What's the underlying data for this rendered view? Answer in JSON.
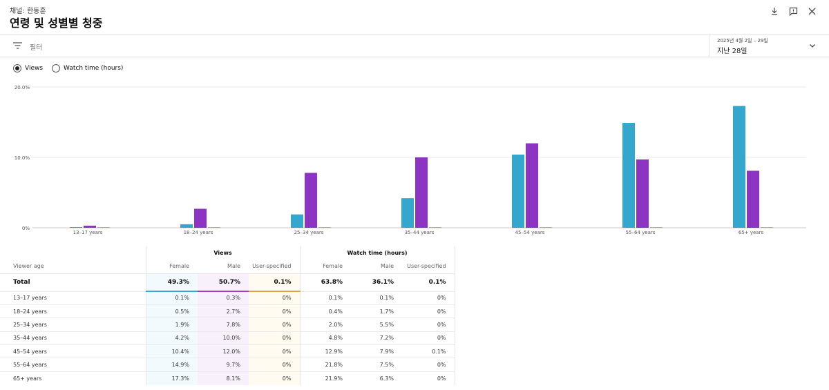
{
  "header": {
    "channel": "채널: 한동훈",
    "title": "연령 및 성별별 청중"
  },
  "icons": [
    "download-icon",
    "feedback-icon",
    "close-icon",
    "filter-icon",
    "chevron-down-icon"
  ],
  "filter": {
    "label": "필터"
  },
  "date": {
    "range": "2025년 4월 2일 – 29일",
    "label": "지난 28일"
  },
  "metric_toggle": {
    "options": [
      "Views",
      "Watch time (hours)"
    ],
    "selected": "Views"
  },
  "colors": {
    "female": "#35a6cc",
    "male": "#8e34c2",
    "user_specified": "#e0a63a",
    "grid": "#e8e8e8"
  },
  "chart_data": {
    "type": "bar",
    "categories": [
      "13–17 years",
      "18–24 years",
      "25–34 years",
      "35–44 years",
      "45–54 years",
      "55–64 years",
      "65+ years"
    ],
    "series": [
      {
        "name": "Female",
        "values": [
          0.1,
          0.5,
          1.9,
          4.2,
          10.4,
          14.9,
          17.3
        ]
      },
      {
        "name": "Male",
        "values": [
          0.3,
          2.7,
          7.8,
          10.0,
          12.0,
          9.7,
          8.1
        ]
      },
      {
        "name": "User-specified",
        "values": [
          0,
          0,
          0,
          0,
          0.1,
          0,
          0
        ]
      }
    ],
    "y_ticks": [
      "0%",
      "10.0%",
      "20.0%"
    ],
    "ylim": [
      0,
      20
    ],
    "grid": true
  },
  "table": {
    "groups": [
      "Views",
      "Watch time (hours)"
    ],
    "row_header": "Viewer age",
    "columns": [
      "Female",
      "Male",
      "User-specified",
      "Female",
      "Male",
      "User-specified"
    ],
    "total": {
      "label": "Total",
      "values": [
        "49.3%",
        "50.7%",
        "0.1%",
        "63.8%",
        "36.1%",
        "0.1%"
      ]
    },
    "rows": [
      {
        "label": "13–17 years",
        "values": [
          "0.1%",
          "0.3%",
          "0%",
          "0.1%",
          "0.1%",
          "0%"
        ]
      },
      {
        "label": "18–24 years",
        "values": [
          "0.5%",
          "2.7%",
          "0%",
          "0.4%",
          "1.7%",
          "0%"
        ]
      },
      {
        "label": "25–34 years",
        "values": [
          "1.9%",
          "7.8%",
          "0%",
          "2.0%",
          "5.5%",
          "0%"
        ]
      },
      {
        "label": "35–44 years",
        "values": [
          "4.2%",
          "10.0%",
          "0%",
          "4.8%",
          "7.2%",
          "0%"
        ]
      },
      {
        "label": "45–54 years",
        "values": [
          "10.4%",
          "12.0%",
          "0%",
          "12.9%",
          "7.9%",
          "0.1%"
        ]
      },
      {
        "label": "55–64 years",
        "values": [
          "14.9%",
          "9.7%",
          "0%",
          "21.8%",
          "7.5%",
          "0%"
        ]
      },
      {
        "label": "65+ years",
        "values": [
          "17.3%",
          "8.1%",
          "0%",
          "21.9%",
          "6.3%",
          "0%"
        ]
      }
    ]
  }
}
